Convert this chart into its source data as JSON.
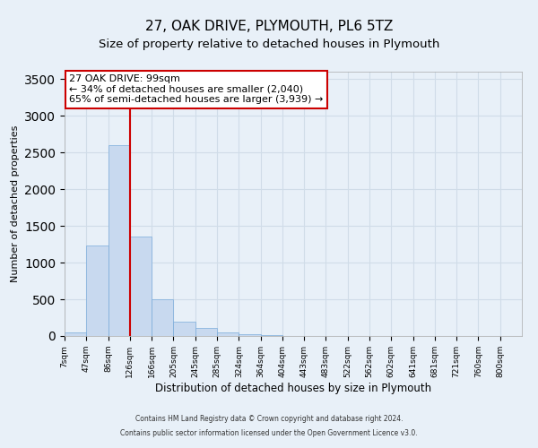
{
  "title": "27, OAK DRIVE, PLYMOUTH, PL6 5TZ",
  "subtitle": "Size of property relative to detached houses in Plymouth",
  "xlabel": "Distribution of detached houses by size in Plymouth",
  "ylabel": "Number of detached properties",
  "bar_values": [
    50,
    1230,
    2600,
    1350,
    500,
    200,
    110,
    50,
    30,
    15,
    5,
    0,
    0,
    0,
    0,
    0,
    0,
    0,
    0,
    0,
    0
  ],
  "bar_labels": [
    "7sqm",
    "47sqm",
    "86sqm",
    "126sqm",
    "166sqm",
    "205sqm",
    "245sqm",
    "285sqm",
    "324sqm",
    "364sqm",
    "404sqm",
    "443sqm",
    "483sqm",
    "522sqm",
    "562sqm",
    "602sqm",
    "641sqm",
    "681sqm",
    "721sqm",
    "760sqm",
    "800sqm"
  ],
  "bar_color": "#c8d9ef",
  "bar_edgecolor": "#7aabda",
  "vline_x_index": 3,
  "vline_color": "#cc0000",
  "ylim": [
    0,
    3600
  ],
  "yticks": [
    0,
    500,
    1000,
    1500,
    2000,
    2500,
    3000,
    3500
  ],
  "annotation_box_line1": "27 OAK DRIVE: 99sqm",
  "annotation_box_line2": "← 34% of detached houses are smaller (2,040)",
  "annotation_box_line3": "65% of semi-detached houses are larger (3,939) →",
  "annotation_box_color": "#cc0000",
  "footer_line1": "Contains HM Land Registry data © Crown copyright and database right 2024.",
  "footer_line2": "Contains public sector information licensed under the Open Government Licence v3.0.",
  "background_color": "#e8f0f8",
  "plot_bg_color": "#e8f0f8",
  "grid_color": "#d0dce8",
  "title_fontsize": 11,
  "subtitle_fontsize": 9.5,
  "xlabel_fontsize": 8.5,
  "ylabel_fontsize": 8
}
